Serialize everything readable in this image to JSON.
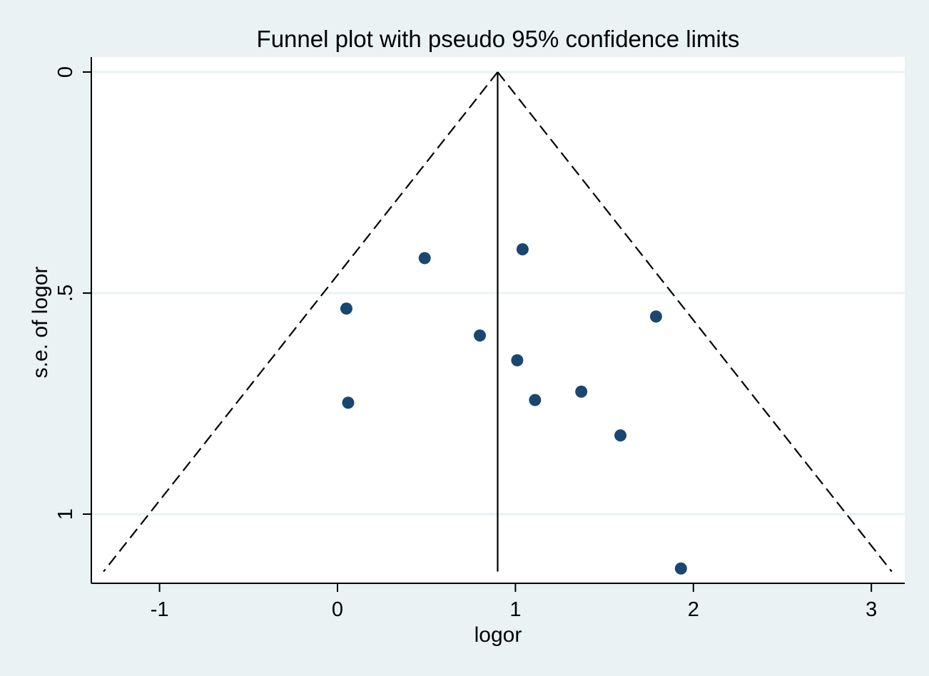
{
  "colors": {
    "background": "#eaf2f3",
    "plot_area": "#ffffff",
    "gridline": "#eaf2f3",
    "marker": "#1a476f",
    "lines": "#000000"
  },
  "chart_data": {
    "type": "scatter",
    "title": "Funnel plot with pseudo 95% confidence limits",
    "xlabel": "logor",
    "ylabel": "s.e. of logor",
    "xlim": [
      -1.4,
      3.2
    ],
    "ylim": [
      0,
      1.15
    ],
    "y_reversed": true,
    "grid": true,
    "x_ticks": [
      {
        "value": -1,
        "label": "-1"
      },
      {
        "value": 0,
        "label": "0"
      },
      {
        "value": 1,
        "label": "1"
      },
      {
        "value": 2,
        "label": "2"
      },
      {
        "value": 3,
        "label": "3"
      }
    ],
    "y_ticks": [
      {
        "value": 0,
        "label": "0"
      },
      {
        "value": 0.5,
        "label": ".5"
      },
      {
        "value": 1,
        "label": "1"
      }
    ],
    "pooled_estimate": 0.9,
    "funnel": {
      "z": 1.96,
      "se_max": 1.13,
      "line_style": "dashed"
    },
    "points": [
      {
        "x": 0.49,
        "y": 0.421
      },
      {
        "x": 1.04,
        "y": 0.401
      },
      {
        "x": 0.05,
        "y": 0.535
      },
      {
        "x": 1.79,
        "y": 0.553
      },
      {
        "x": 0.8,
        "y": 0.596
      },
      {
        "x": 1.01,
        "y": 0.652
      },
      {
        "x": 1.37,
        "y": 0.723
      },
      {
        "x": 1.11,
        "y": 0.742
      },
      {
        "x": 0.06,
        "y": 0.748
      },
      {
        "x": 1.59,
        "y": 0.822
      },
      {
        "x": 1.93,
        "y": 1.123
      }
    ]
  }
}
